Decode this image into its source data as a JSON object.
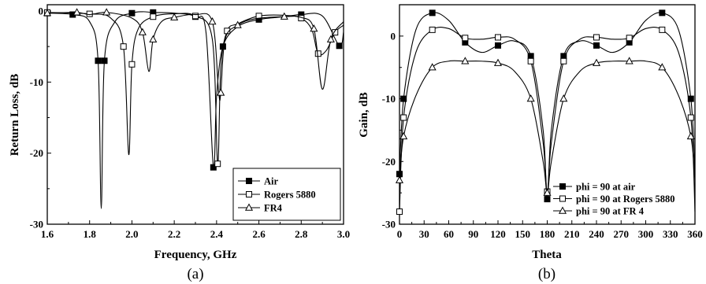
{
  "chart_data": [
    {
      "type": "line",
      "caption": "(a)",
      "xlabel": "Frequency, GHz",
      "ylabel": "Return Loss, dB",
      "xlim": [
        1.6,
        3.0
      ],
      "ylim": [
        -30,
        0
      ],
      "xticks": [
        "1.6",
        "1.8",
        "2.0",
        "2.2",
        "2.4",
        "2.6",
        "2.8",
        "3.0"
      ],
      "yticks": [
        "0",
        "-10",
        "-20",
        "-30"
      ],
      "legend": "bottom-right",
      "grid": false,
      "series": [
        {
          "name": "Air",
          "marker": "filled-square",
          "x": [
            1.6,
            1.72,
            1.8,
            1.84,
            1.855,
            1.87,
            1.92,
            2.0,
            2.05,
            2.1,
            2.2,
            2.3,
            2.35,
            2.385,
            2.4,
            2.43,
            2.5,
            2.6,
            2.72,
            2.8,
            2.9,
            2.98,
            3.0
          ],
          "y": [
            -0.3,
            -0.5,
            -1.5,
            -7,
            -27.8,
            -7,
            -1.5,
            -0.3,
            -0.1,
            -0.2,
            -0.3,
            -0.8,
            -3,
            -22,
            -12,
            -5,
            -2.2,
            -1.2,
            -0.8,
            -0.5,
            -0.7,
            -4.9,
            -3
          ]
        },
        {
          "name": "Rogers 5880",
          "marker": "open-square",
          "x": [
            1.6,
            1.8,
            1.9,
            1.96,
            1.985,
            2.0,
            2.03,
            2.1,
            2.2,
            2.3,
            2.38,
            2.405,
            2.42,
            2.45,
            2.5,
            2.6,
            2.72,
            2.8,
            2.85,
            2.88,
            2.92,
            2.96,
            3.0
          ],
          "y": [
            -0.2,
            -0.4,
            -1.0,
            -5,
            -20.2,
            -7.5,
            -2.5,
            -0.8,
            -0.4,
            -0.7,
            -4,
            -21.5,
            -8,
            -2.8,
            -1.8,
            -0.7,
            -0.6,
            -1.0,
            -2.6,
            -6,
            -5.5,
            -3,
            -2
          ]
        },
        {
          "name": "FR4",
          "marker": "open-triangle",
          "x": [
            1.6,
            1.74,
            1.8,
            1.88,
            2.0,
            2.05,
            2.08,
            2.1,
            2.14,
            2.2,
            2.3,
            2.38,
            2.41,
            2.42,
            2.44,
            2.5,
            2.58,
            2.72,
            2.8,
            2.86,
            2.9,
            2.94,
            3.0
          ],
          "y": [
            -0.3,
            -0.2,
            -0.5,
            -0.2,
            -1.0,
            -3,
            -8.5,
            -4,
            -1.5,
            -0.9,
            -0.5,
            -1.5,
            -11.5,
            -11.5,
            -4,
            -2,
            -1.1,
            -0.8,
            -0.9,
            -2.5,
            -11,
            -4,
            -1.5
          ]
        }
      ]
    },
    {
      "type": "line",
      "caption": "(b)",
      "xlabel": "Theta",
      "ylabel": "Gain, dB",
      "xlim": [
        0,
        360
      ],
      "ylim": [
        -30,
        5
      ],
      "xticks": [
        "0",
        "30",
        "60",
        "90",
        "120",
        "150",
        "180",
        "210",
        "240",
        "270",
        "300",
        "330",
        "360"
      ],
      "yticks": [
        "0",
        "-10",
        "-20",
        "-30"
      ],
      "legend": "bottom-right",
      "grid": false,
      "series": [
        {
          "name": "phi = 90 at air",
          "marker": "filled-square",
          "x": [
            0,
            5,
            20,
            40,
            60,
            80,
            100,
            120,
            140,
            160,
            175,
            180,
            185,
            200,
            220,
            240,
            260,
            280,
            300,
            320,
            340,
            355,
            360
          ],
          "y": [
            -22,
            -10,
            1,
            3.7,
            2.5,
            -1,
            -2.6,
            -1.5,
            -0.8,
            -3.2,
            -15,
            -26,
            -15,
            -3.2,
            -0.8,
            -1.5,
            -2.6,
            -1,
            2.5,
            3.7,
            1,
            -10,
            -22
          ]
        },
        {
          "name": "phi = 90 at Rogers 5880",
          "marker": "open-square",
          "x": [
            0,
            5,
            20,
            40,
            60,
            80,
            100,
            120,
            140,
            160,
            175,
            180,
            185,
            200,
            220,
            240,
            260,
            280,
            300,
            320,
            340,
            355,
            360
          ],
          "y": [
            -28,
            -13,
            -2.6,
            1,
            1.2,
            -0.3,
            -0.5,
            -0.2,
            -0.5,
            -4,
            -17,
            -24.8,
            -17,
            -4,
            -0.5,
            -0.2,
            -0.5,
            -0.3,
            1.2,
            1,
            -2.6,
            -13,
            -28
          ]
        },
        {
          "name": "phi = 90 at FR 4",
          "marker": "open-triangle",
          "x": [
            0,
            5,
            20,
            40,
            60,
            80,
            100,
            120,
            140,
            160,
            175,
            180,
            185,
            200,
            220,
            240,
            260,
            280,
            300,
            320,
            340,
            355,
            360
          ],
          "y": [
            -23,
            -16,
            -9.5,
            -5,
            -4,
            -4,
            -4,
            -4.3,
            -5.6,
            -10,
            -20,
            -25,
            -20,
            -10,
            -5.6,
            -4.3,
            -4,
            -4,
            -4,
            -5,
            -9.5,
            -16,
            -23
          ]
        }
      ]
    }
  ]
}
